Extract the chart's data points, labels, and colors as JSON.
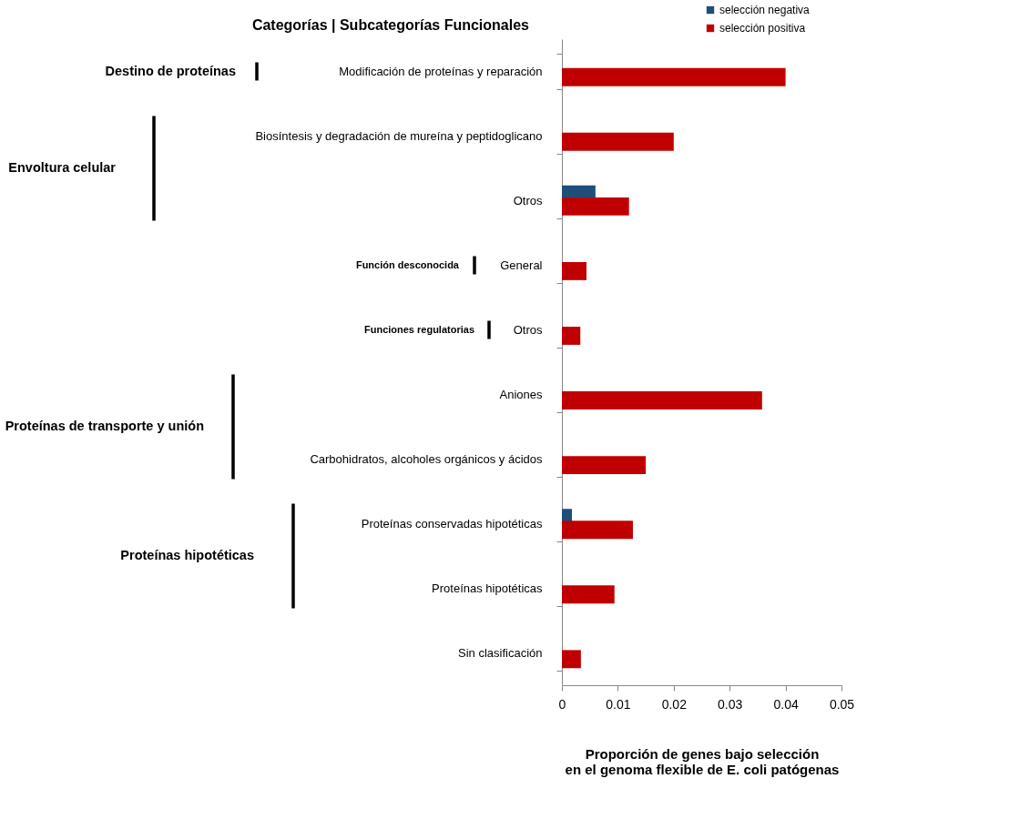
{
  "chart_data": {
    "type": "bar",
    "orientation": "horizontal",
    "title": "Categorías | Subcategorías Funcionales",
    "xlabel": "Proporción de genes bajo selección\nen el genoma flexible de E. coli patógenas",
    "categories": [
      "Modificación de proteínas y reparación",
      "Biosíntesis y degradación de mureína y peptidoglicano",
      "Otros",
      "General",
      "Otros",
      "Aniones",
      "Carbohidratos, alcoholes orgánicos y ácidos",
      "Proteínas conservadas hipotéticas",
      "Proteínas hipotéticas",
      "Sin clasificación"
    ],
    "series": [
      {
        "name": "selección negativa",
        "color": "#1f4e79",
        "values": [
          null,
          null,
          0.006,
          null,
          null,
          null,
          null,
          0.0018,
          null,
          null
        ]
      },
      {
        "name": "selección positiva",
        "color": "#c00000",
        "values": [
          0.04,
          0.02,
          0.012,
          0.0044,
          0.0033,
          0.0358,
          0.015,
          0.0127,
          0.0094,
          0.0034
        ]
      }
    ],
    "annotations": [
      "Destino de proteínas",
      "Envoltura celular",
      "Función desconocida",
      "Funciones regulatorias",
      "Proteínas de transporte y unión",
      "Proteínas hipotéticas"
    ],
    "xlim": [
      0,
      0.05
    ],
    "xticks": [
      {
        "value": 0,
        "label": "0"
      },
      0.01,
      0.02,
      0.03,
      0.04,
      0.05
    ],
    "grid": false,
    "legend": "top right"
  }
}
